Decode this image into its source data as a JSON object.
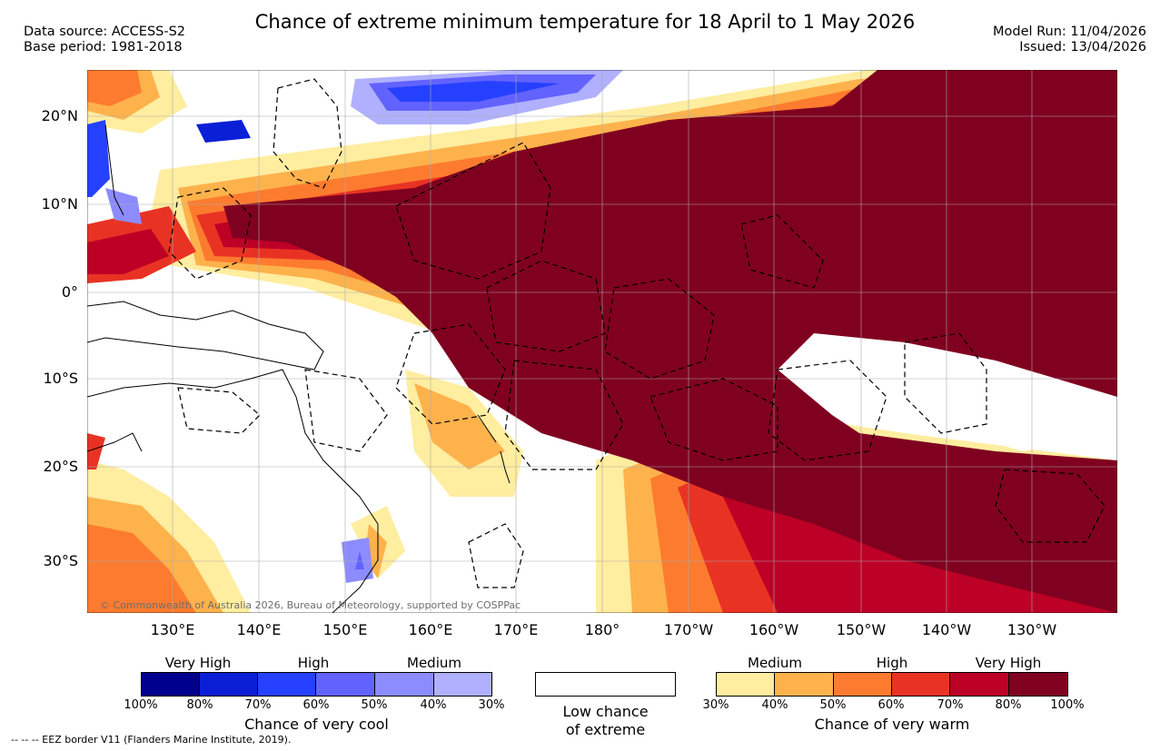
{
  "header": {
    "title": "Chance of extreme minimum temperature for 18 April to 1 May 2026",
    "data_source": "Data source: ACCESS-S2",
    "base_period": "Base period: 1981-2018",
    "model_run": "Model Run: 11/04/2026",
    "issued": "Issued: 13/04/2026"
  },
  "map": {
    "lat_labels": [
      "20°N",
      "10°N",
      "0°",
      "10°S",
      "20°S",
      "30°S"
    ],
    "lon_labels": [
      "130°E",
      "140°E",
      "150°E",
      "160°E",
      "170°E",
      "180°",
      "170°W",
      "160°W",
      "150°W",
      "140°W",
      "130°W"
    ],
    "copyright": "© Commonwealth of Australia 2026, Bureau of Meteorology, supported by COSPPac"
  },
  "legend": {
    "cool": {
      "captions": [
        "Very High",
        "High",
        "Medium"
      ],
      "ticks": [
        "100%",
        "80%",
        "70%",
        "60%",
        "50%",
        "40%",
        "30%"
      ],
      "title": "Chance of very cool",
      "colors": [
        "#00008f",
        "#0a1fd6",
        "#2640ff",
        "#6262ff",
        "#8c8cff",
        "#b0b0ff"
      ]
    },
    "none": {
      "title_line1": "Low chance",
      "title_line2": "of extreme",
      "color": "#ffffff"
    },
    "warm": {
      "captions": [
        "Medium",
        "High",
        "Very High"
      ],
      "ticks": [
        "30%",
        "40%",
        "50%",
        "60%",
        "70%",
        "80%",
        "100%"
      ],
      "title": "Chance of very warm",
      "colors": [
        "#ffeda0",
        "#feb24c",
        "#fd7b2f",
        "#e83324",
        "#bd0026",
        "#800020"
      ]
    }
  },
  "footnote": "--  --  -- EEZ border V11 (Flanders Marine Institute, 2019)."
}
